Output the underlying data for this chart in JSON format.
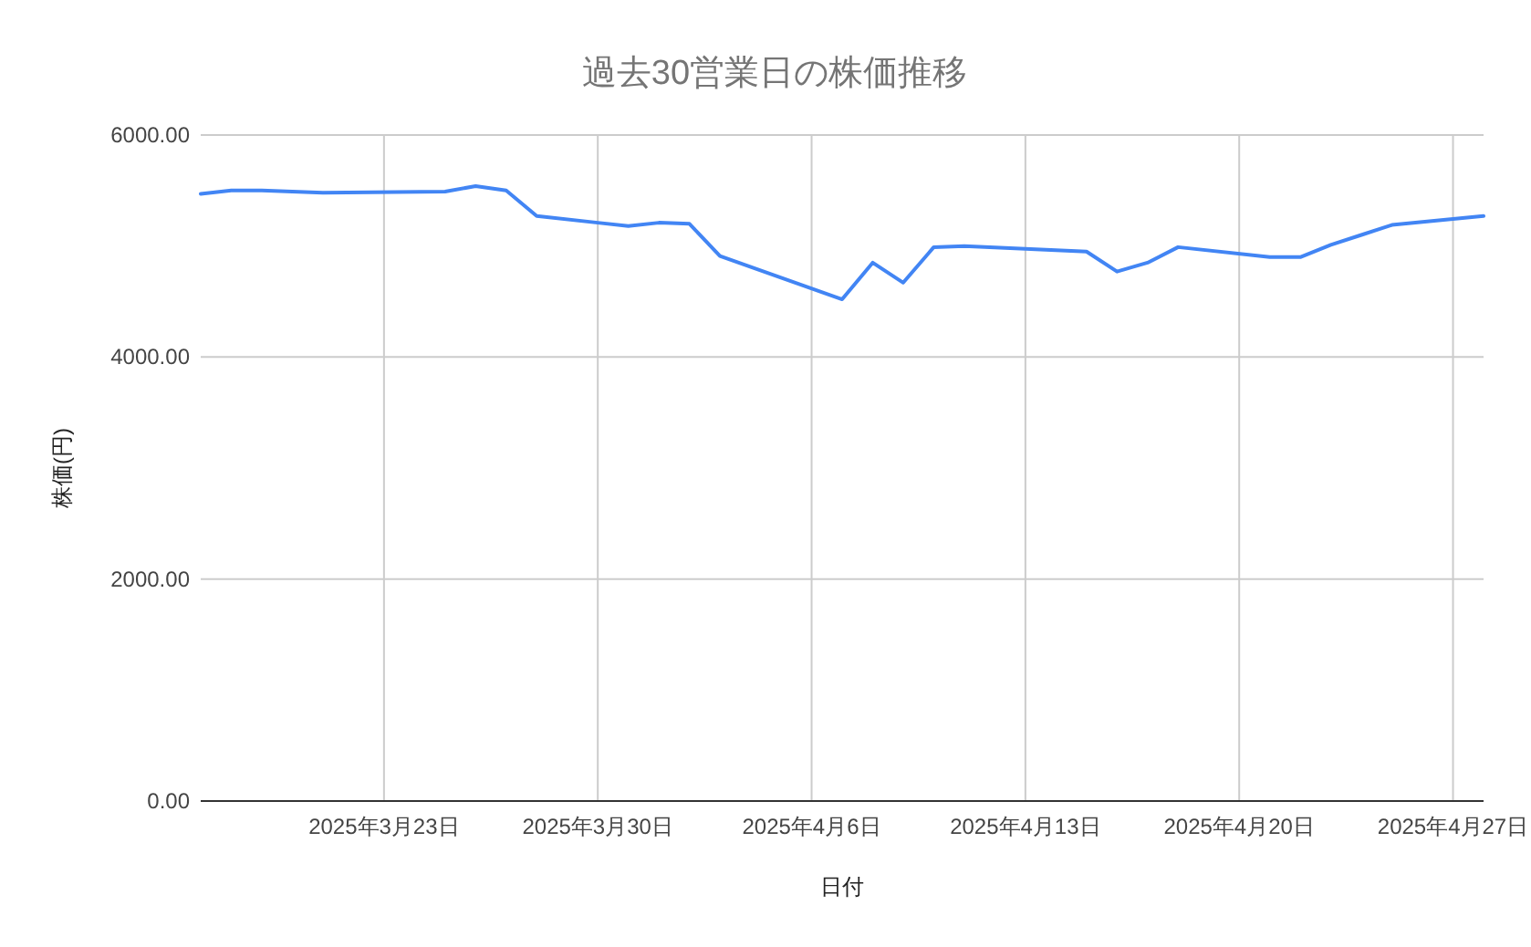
{
  "chart_data": {
    "type": "line",
    "title": "過去30営業日の株価推移",
    "xlabel": "日付",
    "ylabel": "株価(円)",
    "x": [
      "2025-03-17",
      "2025-03-18",
      "2025-03-19",
      "2025-03-21",
      "2025-03-25",
      "2025-03-26",
      "2025-03-27",
      "2025-03-28",
      "2025-03-30",
      "2025-03-31",
      "2025-04-01",
      "2025-04-02",
      "2025-04-03",
      "2025-04-07",
      "2025-04-08",
      "2025-04-09",
      "2025-04-10",
      "2025-04-11",
      "2025-04-15",
      "2025-04-16",
      "2025-04-17",
      "2025-04-18",
      "2025-04-21",
      "2025-04-22",
      "2025-04-23",
      "2025-04-24",
      "2025-04-25",
      "2025-04-28"
    ],
    "series": [
      {
        "color": "#4285f4",
        "values": [
          5470,
          5500,
          5500,
          5480,
          5490,
          5540,
          5500,
          5270,
          5210,
          5180,
          5210,
          5200,
          4910,
          4520,
          4850,
          4670,
          4990,
          5000,
          4950,
          4770,
          4850,
          4990,
          4900,
          4900,
          5010,
          5100,
          5190,
          5270
        ]
      }
    ],
    "xlim": [
      "2025-03-17",
      "2025-04-28"
    ],
    "xticks": [
      {
        "value": "2025-03-23",
        "label": "2025年3月23日"
      },
      {
        "value": "2025-03-30",
        "label": "2025年3月30日"
      },
      {
        "value": "2025-04-06",
        "label": "2025年4月6日"
      },
      {
        "value": "2025-04-13",
        "label": "2025年4月13日"
      },
      {
        "value": "2025-04-20",
        "label": "2025年4月20日"
      },
      {
        "value": "2025-04-27",
        "label": "2025年4月27日"
      }
    ],
    "ylim": [
      0,
      6000
    ],
    "yticks": [
      {
        "value": 0,
        "label": "0.00"
      },
      {
        "value": 2000,
        "label": "2000.00"
      },
      {
        "value": 4000,
        "label": "4000.00"
      },
      {
        "value": 6000,
        "label": "6000.00"
      }
    ],
    "grid": true,
    "marker": "none",
    "line_style": "solid"
  }
}
